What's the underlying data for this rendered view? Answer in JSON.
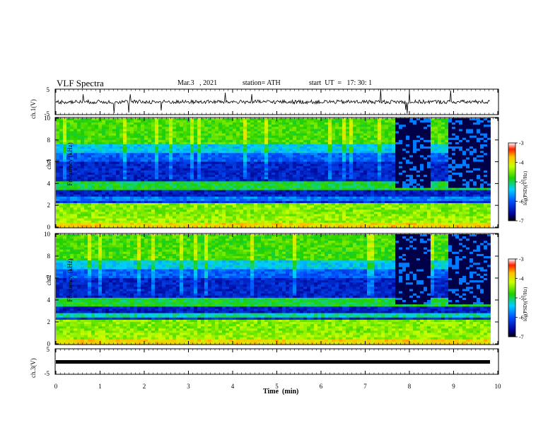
{
  "header": {
    "title": "VLF Spectra",
    "date": "Mar.3   , 2021",
    "station": "station= ATH",
    "start": "start  UT  =   17: 30: 1"
  },
  "panels": {
    "ch1_wave_label": "ch.1(V)",
    "ch1_spec_label_line1": "ch.1",
    "ch1_spec_label_line2": "Frequency (kHz)",
    "ch2_spec_label_line1": "ch.2",
    "ch2_spec_label_line2": "Frequency (kHz)",
    "ch3_wave_label": "ch.3(V)",
    "colorbar_label": "log(PSD)(V²/Hz)"
  },
  "chart_data": [
    {
      "type": "line",
      "name": "ch1-waveform",
      "ylabel": "ch.1(V)",
      "ylim": [
        -5,
        5
      ],
      "yticks": [
        "5",
        "-5"
      ],
      "xlim": [
        0,
        10
      ],
      "baseline": 0
    },
    {
      "type": "heatmap",
      "name": "ch1-spectrogram",
      "ylabel": "ch.1 Frequency (kHz)",
      "ylim": [
        0,
        10
      ],
      "yticks": [
        "0",
        "2",
        "4",
        "6",
        "8",
        "10"
      ],
      "xlim": [
        0,
        10
      ],
      "colorbar": {
        "ticks": [
          "-3",
          "-4",
          "-5",
          "-6",
          "-7"
        ],
        "range": [
          -7,
          -3
        ],
        "label": "log(PSD)(V²/Hz)"
      },
      "notable_gaps_min": [
        [
          7.65,
          8.45
        ],
        [
          8.85,
          9.8
        ]
      ]
    },
    {
      "type": "heatmap",
      "name": "ch2-spectrogram",
      "ylabel": "ch.2 Frequency (kHz)",
      "ylim": [
        0,
        10
      ],
      "yticks": [
        "0",
        "2",
        "4",
        "6",
        "8",
        "10"
      ],
      "xlim": [
        0,
        10
      ],
      "colorbar": {
        "ticks": [
          "-3",
          "-4",
          "-5",
          "-6",
          "-7"
        ],
        "range": [
          -7,
          -3
        ],
        "label": "log(PSD)(V²/Hz)"
      },
      "notable_gaps_min": [
        [
          7.65,
          8.45
        ],
        [
          8.85,
          9.8
        ]
      ]
    },
    {
      "type": "line",
      "name": "ch3-waveform",
      "ylabel": "ch.3(V)",
      "ylim": [
        -5,
        5
      ],
      "yticks": [
        "5",
        "-5"
      ],
      "xlim": [
        0,
        10
      ],
      "baseline": 0
    }
  ],
  "xaxis": {
    "label": "Time  (min)",
    "ticks": [
      "0",
      "1",
      "2",
      "3",
      "4",
      "5",
      "6",
      "7",
      "8",
      "9",
      "10"
    ]
  },
  "colors": {
    "noise_floor": "#00008c",
    "band": "#20c800",
    "strong": "#ffe000"
  }
}
